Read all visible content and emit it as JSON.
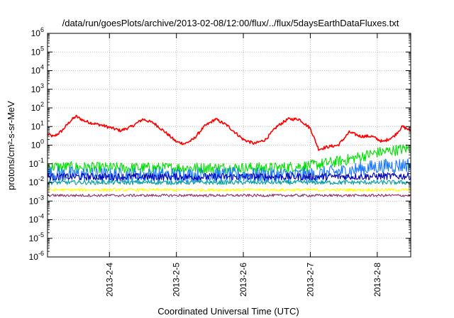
{
  "chart_data": {
    "type": "line",
    "title": "/data/run/goesPlots/archive/2013-02-08/12:00/flux/../flux/5daysEarthDataFluxes.txt",
    "xlabel": "Coordinated Universal Time (UTC)",
    "ylabel": "protons/cm²-s-sr-MeV",
    "y_scale": "log",
    "ylim": [
      1e-06,
      1000000.0
    ],
    "xlim": [
      "2013-02-03 01:48",
      "2013-02-08 12:00"
    ],
    "grid": true,
    "legend": "none",
    "y_ticks": [
      {
        "base": "10",
        "exp": "-6"
      },
      {
        "base": "10",
        "exp": "-5"
      },
      {
        "base": "10",
        "exp": "-4"
      },
      {
        "base": "10",
        "exp": "-3"
      },
      {
        "base": "10",
        "exp": "-2"
      },
      {
        "base": "10",
        "exp": "-1"
      },
      {
        "base": "10",
        "exp": "0"
      },
      {
        "base": "10",
        "exp": "1"
      },
      {
        "base": "10",
        "exp": "2"
      },
      {
        "base": "10",
        "exp": "3"
      },
      {
        "base": "10",
        "exp": "4"
      },
      {
        "base": "10",
        "exp": "5"
      },
      {
        "base": "10",
        "exp": "6"
      }
    ],
    "x_ticks": [
      {
        "label": "2013-2-4",
        "x": "2013-02-04 00:00"
      },
      {
        "label": "2013-2-5",
        "x": "2013-02-05 00:00"
      },
      {
        "label": "2013-2-6",
        "x": "2013-02-06 00:00"
      },
      {
        "label": "2013-2-7",
        "x": "2013-02-07 00:00"
      },
      {
        "label": "2013-2-8",
        "x": "2013-02-08 00:00"
      }
    ],
    "series": [
      {
        "color": "#ff0000",
        "noise": 0.08,
        "x": [
          "2013-02-03 01:48",
          "2013-02-03 04:00",
          "2013-02-03 07:00",
          "2013-02-03 10:00",
          "2013-02-03 12:00",
          "2013-02-03 15:00",
          "2013-02-03 18:00",
          "2013-02-03 21:00",
          "2013-02-04 00:00",
          "2013-02-04 04:00",
          "2013-02-04 08:00",
          "2013-02-04 12:00",
          "2013-02-04 16:00",
          "2013-02-04 20:00",
          "2013-02-05 00:00",
          "2013-02-05 03:00",
          "2013-02-05 06:00",
          "2013-02-05 10:00",
          "2013-02-05 14:00",
          "2013-02-05 18:00",
          "2013-02-06 00:00",
          "2013-02-06 04:00",
          "2013-02-06 08:00",
          "2013-02-06 12:00",
          "2013-02-06 16:00",
          "2013-02-06 20:00",
          "2013-02-07 00:00",
          "2013-02-07 03:00",
          "2013-02-07 06:00",
          "2013-02-07 10:00",
          "2013-02-07 14:00",
          "2013-02-07 18:00",
          "2013-02-07 22:00",
          "2013-02-08 02:00",
          "2013-02-08 06:00",
          "2013-02-08 09:00",
          "2013-02-08 12:00"
        ],
        "y": [
          4,
          2.8,
          6,
          20,
          35,
          20,
          15,
          12,
          9,
          6,
          10,
          25,
          15,
          5,
          1.5,
          1.2,
          2,
          10,
          25,
          12,
          2,
          1.2,
          2,
          10,
          25,
          25,
          8,
          0.6,
          0.8,
          1,
          5,
          3,
          3,
          1.5,
          3,
          10,
          6
        ]
      },
      {
        "color": "#00e000",
        "noise": 0.3,
        "x": [
          "2013-02-03 01:48",
          "2013-02-04 00:00",
          "2013-02-05 00:00",
          "2013-02-06 00:00",
          "2013-02-06 12:00",
          "2013-02-07 00:00",
          "2013-02-07 12:00",
          "2013-02-08 00:00",
          "2013-02-08 12:00"
        ],
        "y": [
          0.07,
          0.06,
          0.06,
          0.06,
          0.06,
          0.08,
          0.15,
          0.4,
          0.7
        ]
      },
      {
        "color": "#1a78ff",
        "noise": 0.4,
        "x": [
          "2013-02-03 01:48",
          "2013-02-04 00:00",
          "2013-02-05 00:00",
          "2013-02-06 00:00",
          "2013-02-07 00:00",
          "2013-02-07 12:00",
          "2013-02-08 00:00",
          "2013-02-08 12:00"
        ],
        "y": [
          0.03,
          0.025,
          0.025,
          0.025,
          0.025,
          0.04,
          0.07,
          0.09
        ]
      },
      {
        "color": "#0000b0",
        "noise": 0.2,
        "x": [
          "2013-02-03 01:48",
          "2013-02-05 00:00",
          "2013-02-07 00:00",
          "2013-02-08 12:00"
        ],
        "y": [
          0.02,
          0.02,
          0.02,
          0.022
        ]
      },
      {
        "color": "#00a0a0",
        "noise": 0.12,
        "x": [
          "2013-02-03 01:48",
          "2013-02-08 12:00"
        ],
        "y": [
          0.01,
          0.01
        ]
      },
      {
        "color": "#ffff00",
        "noise": 0.08,
        "x": [
          "2013-02-03 01:48",
          "2013-02-08 12:00"
        ],
        "y": [
          0.004,
          0.004
        ]
      },
      {
        "color": "#8a2e6e",
        "noise": 0.07,
        "x": [
          "2013-02-03 01:48",
          "2013-02-08 12:00"
        ],
        "y": [
          0.002,
          0.002
        ]
      }
    ]
  }
}
